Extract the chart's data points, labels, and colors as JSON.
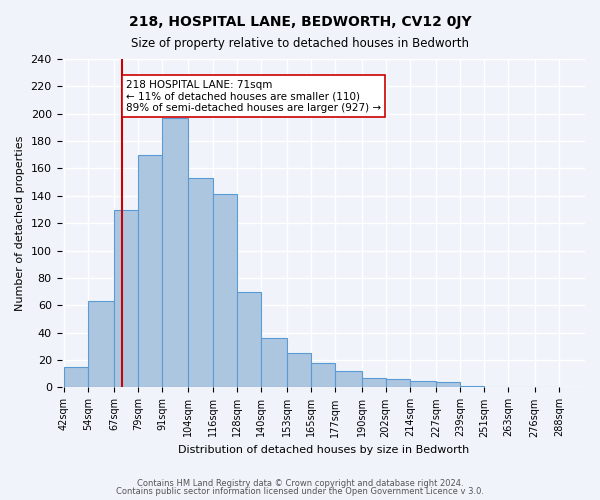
{
  "title": "218, HOSPITAL LANE, BEDWORTH, CV12 0JY",
  "subtitle": "Size of property relative to detached houses in Bedworth",
  "xlabel": "Distribution of detached houses by size in Bedworth",
  "ylabel": "Number of detached properties",
  "bin_labels": [
    "42sqm",
    "54sqm",
    "67sqm",
    "79sqm",
    "91sqm",
    "104sqm",
    "116sqm",
    "128sqm",
    "140sqm",
    "153sqm",
    "165sqm",
    "177sqm",
    "190sqm",
    "202sqm",
    "214sqm",
    "227sqm",
    "239sqm",
    "251sqm",
    "263sqm",
    "276sqm",
    "288sqm"
  ],
  "bin_edges": [
    42,
    54,
    67,
    79,
    91,
    104,
    116,
    128,
    140,
    153,
    165,
    177,
    190,
    202,
    214,
    227,
    239,
    251,
    263,
    276,
    288
  ],
  "bar_heights": [
    15,
    63,
    130,
    170,
    197,
    153,
    141,
    70,
    36,
    25,
    18,
    12,
    7,
    6,
    5,
    4,
    1,
    0,
    0,
    0
  ],
  "bar_color": "#adc6e0",
  "bar_edge_color": "#5b9bd5",
  "property_size": 71,
  "property_line_color": "#cc0000",
  "annotation_text": "218 HOSPITAL LANE: 71sqm\n← 11% of detached houses are smaller (110)\n89% of semi-detached houses are larger (927) →",
  "annotation_box_edge": "#cc0000",
  "ylim": [
    0,
    240
  ],
  "footer1": "Contains HM Land Registry data © Crown copyright and database right 2024.",
  "footer2": "Contains public sector information licensed under the Open Government Licence v 3.0.",
  "background_color": "#f0f4fa",
  "plot_background": "#f0f4fa",
  "grid_color": "#ffffff"
}
